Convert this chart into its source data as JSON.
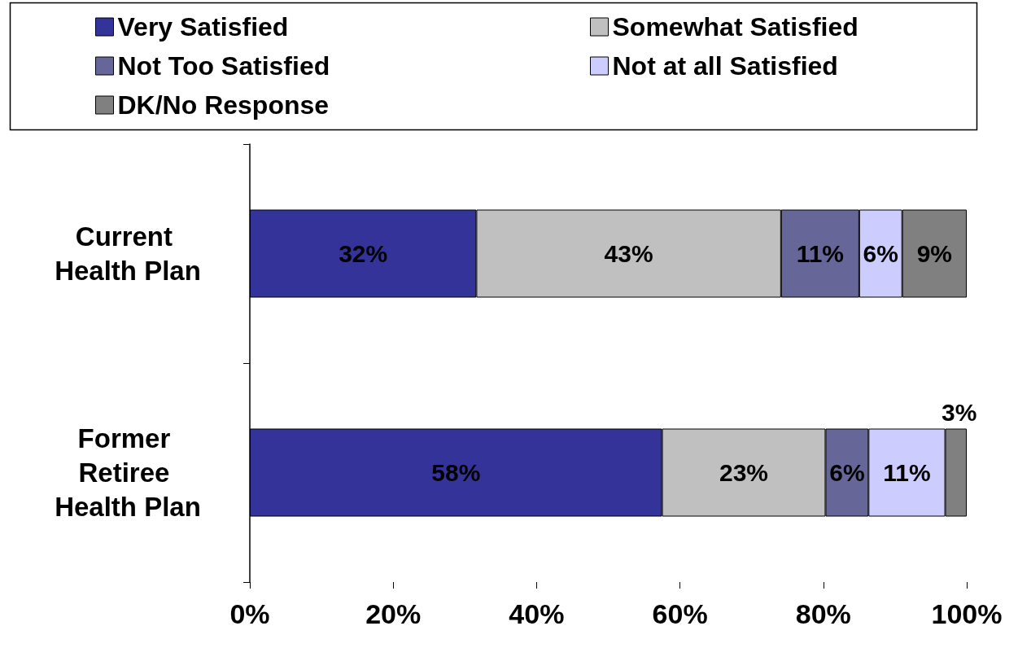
{
  "chart_data": {
    "type": "bar",
    "orientation": "horizontal",
    "stacked": true,
    "categories": [
      "Current Health Plan",
      "Former Retiree Health Plan"
    ],
    "series": [
      {
        "name": "Very Satisfied",
        "color": "#333399",
        "values": [
          31.6,
          57.5
        ],
        "value_labels": [
          "32%",
          "58%"
        ]
      },
      {
        "name": "Somewhat Satisfied",
        "color": "#c0c0c0",
        "values": [
          42.5,
          22.8
        ],
        "value_labels": [
          "43%",
          "23%"
        ]
      },
      {
        "name": "Not Too Satisfied",
        "color": "#666699",
        "values": [
          10.9,
          6.0
        ],
        "value_labels": [
          "11%",
          "6%"
        ]
      },
      {
        "name": "Not at all Satisfied",
        "color": "#ccccff",
        "values": [
          6.0,
          10.7
        ],
        "value_labels": [
          "6%",
          "11%"
        ]
      },
      {
        "name": "DK/No Response",
        "color": "#808080",
        "values": [
          9.0,
          3.0
        ],
        "value_labels": [
          "9%",
          "3%"
        ]
      }
    ],
    "xlim": [
      0,
      100
    ],
    "xticks": [
      {
        "value": 0,
        "label": "0%"
      },
      {
        "value": 20,
        "label": "20%"
      },
      {
        "value": 40,
        "label": "40%"
      },
      {
        "value": 60,
        "label": "60%"
      },
      {
        "value": 80,
        "label": "80%"
      },
      {
        "value": 100,
        "label": "100%"
      }
    ],
    "legend": "top",
    "grid": false
  }
}
